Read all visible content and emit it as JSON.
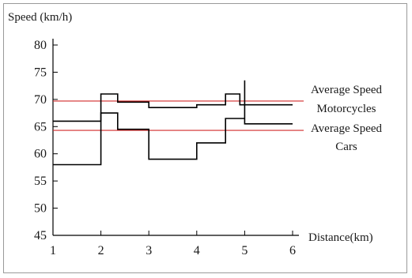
{
  "chart_data": {
    "type": "line",
    "ylabel": "Speed (km/h)",
    "xlabel": "Distance(km)",
    "xlim": [
      1,
      6
    ],
    "ylim": [
      45,
      80
    ],
    "x_ticks": [
      1,
      2,
      3,
      4,
      5,
      6
    ],
    "y_ticks": [
      45,
      50,
      55,
      60,
      65,
      70,
      75,
      80
    ],
    "grid": false,
    "series": [
      {
        "points": [
          [
            1,
            66
          ],
          [
            2,
            66
          ],
          [
            2,
            71
          ],
          [
            2.35,
            71
          ],
          [
            2.35,
            69.5
          ],
          [
            3,
            69.5
          ],
          [
            3,
            68.5
          ],
          [
            4,
            68.5
          ],
          [
            4,
            69
          ],
          [
            4.6,
            69
          ],
          [
            4.6,
            71
          ],
          [
            4.9,
            71
          ],
          [
            4.9,
            69
          ],
          [
            6,
            69
          ]
        ],
        "color": "#000000"
      },
      {
        "points": [
          [
            1,
            58
          ],
          [
            2,
            58
          ],
          [
            2,
            67.5
          ],
          [
            2.35,
            67.5
          ],
          [
            2.35,
            64.5
          ],
          [
            3,
            64.5
          ],
          [
            3,
            59
          ],
          [
            4,
            59
          ],
          [
            4,
            62
          ],
          [
            4.6,
            62
          ],
          [
            4.6,
            66.5
          ],
          [
            5,
            66.5
          ],
          [
            5,
            73.5
          ],
          [
            5,
            65.5
          ],
          [
            6,
            65.5
          ]
        ],
        "color": "#000000"
      }
    ],
    "reference_lines": [
      {
        "y": 69.7,
        "color": "#d22a2a",
        "label_line1": "Average Speed",
        "label_line2": "Motorcycles"
      },
      {
        "y": 64.3,
        "color": "#d22a2a",
        "label_line1": "Average Speed",
        "label_line2": "Cars"
      }
    ]
  }
}
